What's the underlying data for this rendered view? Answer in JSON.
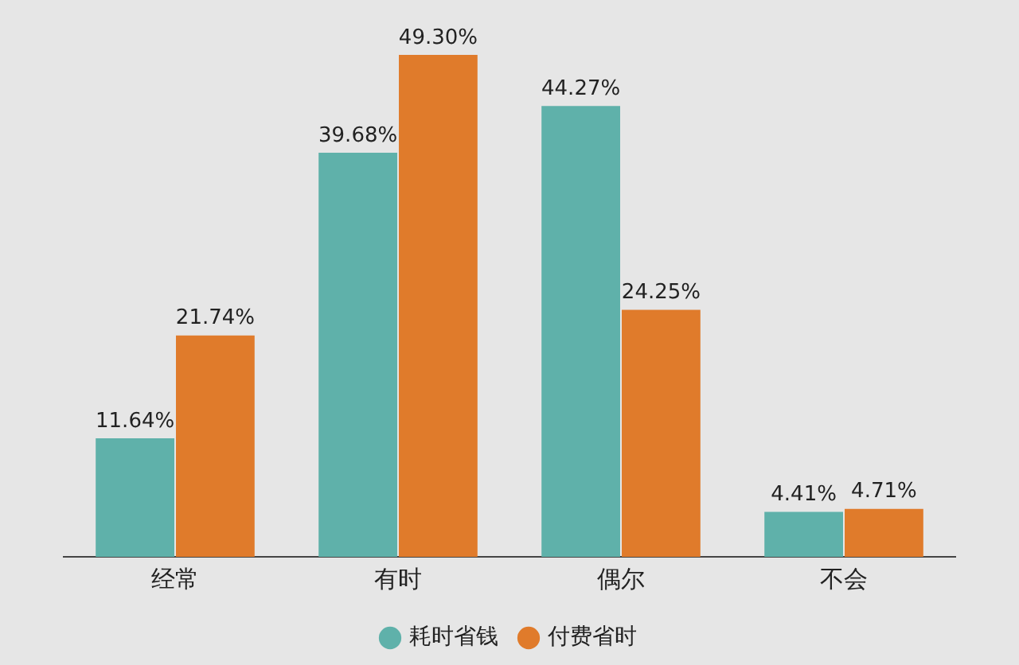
{
  "chart_data": {
    "type": "bar",
    "categories": [
      "经常",
      "有时",
      "偶尔",
      "不会"
    ],
    "series": [
      {
        "name": "耗时省钱",
        "color": "#5fb1aa",
        "values": [
          11.64,
          39.68,
          44.27,
          4.41
        ],
        "value_labels": [
          "11.64%",
          "39.68%",
          "44.27%",
          "4.41%"
        ]
      },
      {
        "name": "付费省时",
        "color": "#e07b2b",
        "values": [
          21.74,
          49.3,
          24.25,
          4.71
        ],
        "value_labels": [
          "21.74%",
          "49.30%",
          "24.25%",
          "4.71%"
        ]
      }
    ],
    "legend": "bottom",
    "grid": false,
    "tick_labels": "x"
  }
}
